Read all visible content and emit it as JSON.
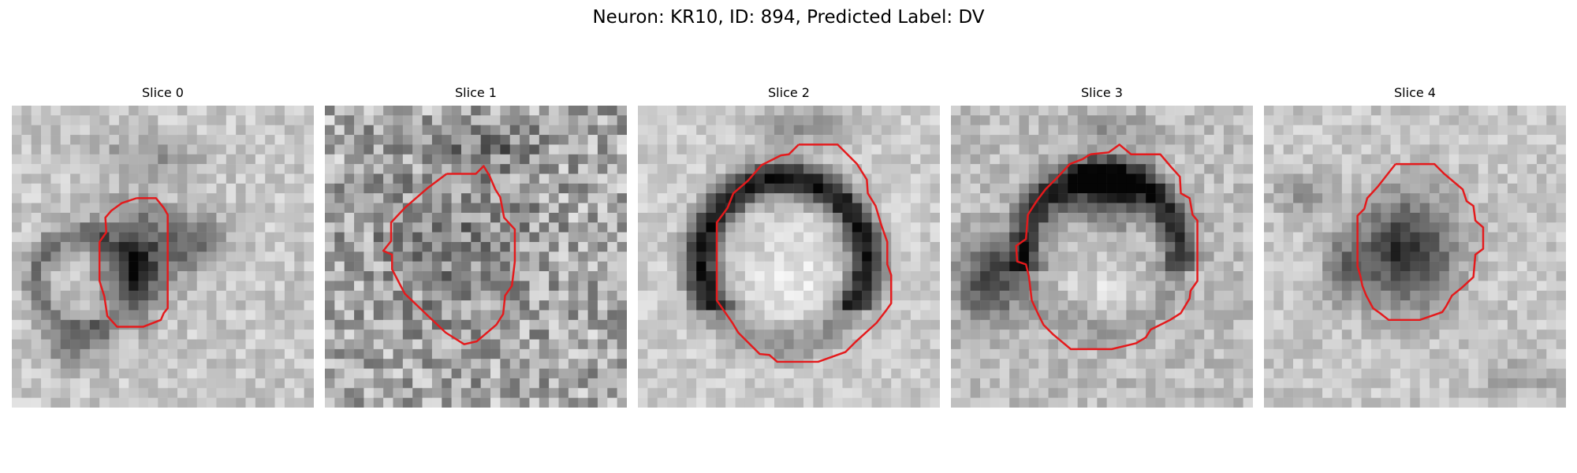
{
  "figure": {
    "title": "Neuron: KR10, ID: 894, Predicted Label: DV"
  },
  "slices": [
    {
      "label": "Slice 0",
      "contour_color": "#e41a1c"
    },
    {
      "label": "Slice 1",
      "contour_color": "#e41a1c"
    },
    {
      "label": "Slice 2",
      "contour_color": "#e41a1c"
    },
    {
      "label": "Slice 3",
      "contour_color": "#e41a1c"
    },
    {
      "label": "Slice 4",
      "contour_color": "#e41a1c"
    }
  ],
  "colormap": "gray"
}
